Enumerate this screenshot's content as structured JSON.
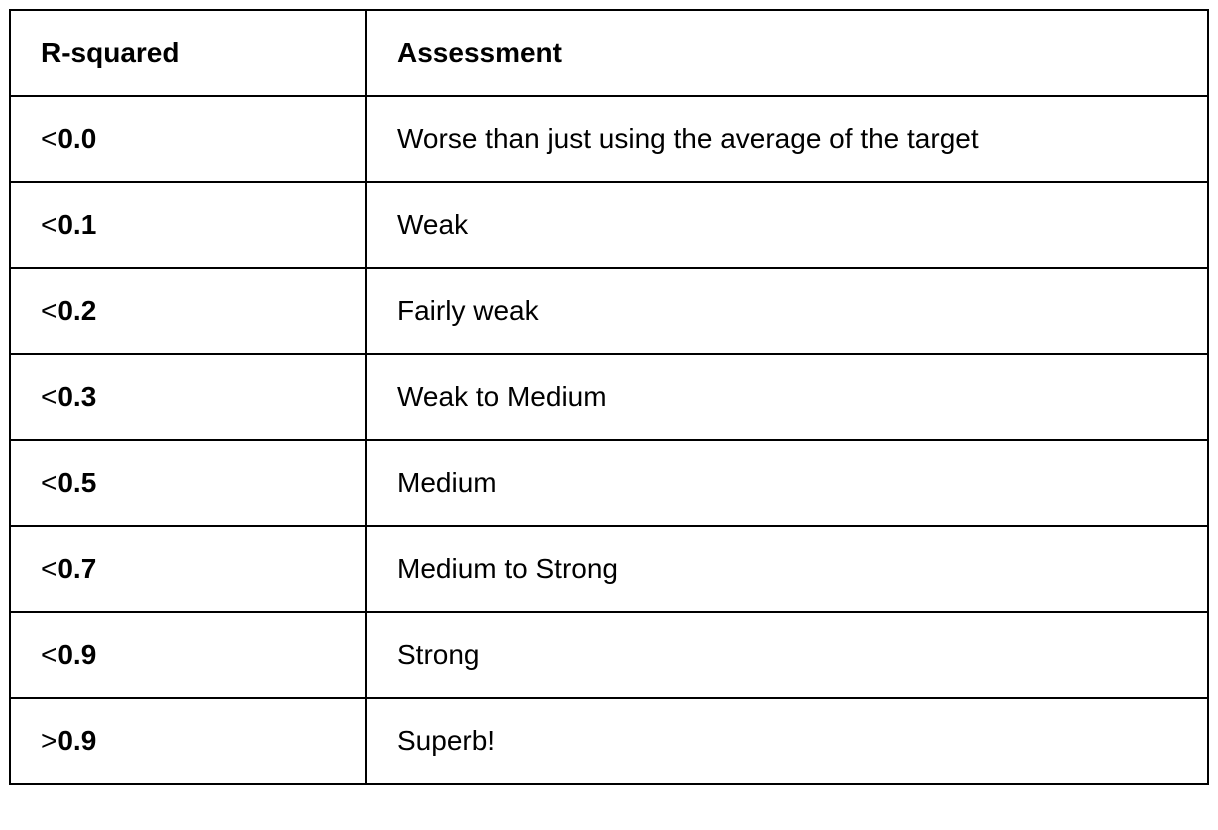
{
  "table": {
    "headers": {
      "col1": "R-squared",
      "col2": "Assessment"
    },
    "rows": [
      {
        "op": "<",
        "value": "0.0",
        "assessment": "Worse than just using the average of the target"
      },
      {
        "op": "<",
        "value": "0.1",
        "assessment": "Weak"
      },
      {
        "op": "<",
        "value": "0.2",
        "assessment": "Fairly weak"
      },
      {
        "op": "<",
        "value": "0.3",
        "assessment": "Weak to Medium"
      },
      {
        "op": "<",
        "value": "0.5",
        "assessment": "Medium"
      },
      {
        "op": "<",
        "value": "0.7",
        "assessment": "Medium to Strong"
      },
      {
        "op": "<",
        "value": "0.9",
        "assessment": "Strong"
      },
      {
        "op": ">",
        "value": "0.9",
        "assessment": "Superb!"
      }
    ]
  }
}
